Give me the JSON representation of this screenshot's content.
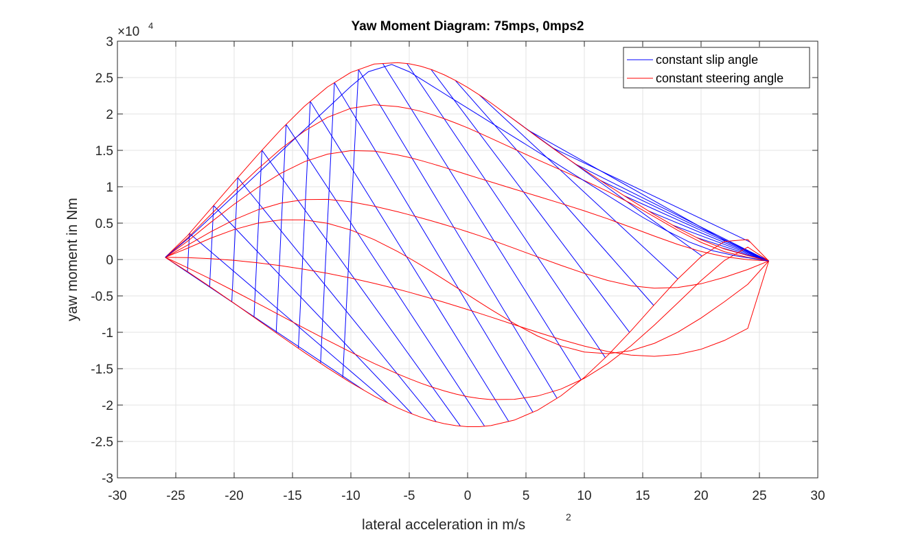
{
  "chart_data": {
    "type": "line",
    "title": "Yaw Moment Diagram: 75mps, 0mps2",
    "xlabel": "lateral acceleration in m/s",
    "xlabel_superscript": "2",
    "ylabel": "yaw moment in Nm",
    "y_exponent_prefix": "×10",
    "y_exponent": "4",
    "xlim": [
      -30,
      30
    ],
    "ylim": [
      -3,
      3
    ],
    "x_ticks": [
      -30,
      -25,
      -20,
      -15,
      -10,
      -5,
      0,
      5,
      10,
      15,
      20,
      25,
      30
    ],
    "y_ticks": [
      -3,
      -2.5,
      -2,
      -1.5,
      -1,
      -0.5,
      0,
      0.5,
      1,
      1.5,
      2,
      2.5,
      3
    ],
    "x_tick_labels": [
      "-30",
      "-25",
      "-20",
      "-15",
      "-10",
      "-5",
      "0",
      "5",
      "10",
      "15",
      "20",
      "25",
      "30"
    ],
    "y_tick_labels": [
      "-3",
      "-2.5",
      "-2",
      "-1.5",
      "-1",
      "-0.5",
      "0",
      "0.5",
      "1",
      "1.5",
      "2",
      "2.5",
      "3"
    ],
    "grid": true,
    "legend_position": "top-right",
    "legend": [
      {
        "label": "constant slip angle",
        "color": "#0000ff"
      },
      {
        "label": "constant steering angle",
        "color": "#ff0000"
      }
    ],
    "series": [
      {
        "name": "constant steering angle",
        "color": "#ff0000",
        "x": [
          -25.9,
          -24.0,
          -22.0,
          -20.0,
          -18.0,
          -16.0,
          -14.0,
          -12.0,
          -10.0,
          -8.0,
          -6.0,
          -5.0,
          -4.0,
          -3.0,
          -2.0,
          -1.0,
          0.0,
          1.0,
          2.0,
          4.0,
          6.0,
          8.0,
          10.0,
          12.0,
          14.0,
          16.0,
          18.0,
          20.0,
          22.0,
          24.0,
          25.8
        ],
        "y": [
          0.03,
          0.327,
          0.697,
          1.069,
          1.435,
          1.785,
          2.103,
          2.372,
          2.572,
          2.686,
          2.706,
          2.69,
          2.656,
          2.605,
          2.538,
          2.457,
          2.365,
          2.262,
          2.152,
          1.918,
          1.679,
          1.448,
          1.23,
          1.021,
          0.817,
          0.617,
          0.432,
          0.272,
          0.145,
          0.055,
          -0.02
        ]
      },
      {
        "name": "constant steering angle",
        "color": "#ff0000",
        "x": [
          -25.9,
          -24.0,
          -22.0,
          -20.0,
          -18.0,
          -16.0,
          -14.0,
          -12.0,
          -10.0,
          -8.0,
          -6.0,
          -5.0,
          -4.0,
          -3.0,
          -2.0,
          -1.0,
          0.0,
          1.0,
          2.0,
          4.0,
          6.0,
          8.0,
          10.0,
          12.0,
          14.0,
          16.0,
          18.0,
          20.0,
          22.0,
          24.0,
          25.8
        ],
        "y": [
          0.03,
          0.294,
          0.617,
          0.935,
          1.24,
          1.52,
          1.763,
          1.954,
          2.078,
          2.126,
          2.101,
          2.074,
          2.036,
          1.989,
          1.935,
          1.874,
          1.809,
          1.739,
          1.666,
          1.518,
          1.371,
          1.229,
          1.086,
          0.936,
          0.769,
          0.587,
          0.402,
          0.236,
          0.108,
          0.029,
          -0.02
        ]
      },
      {
        "name": "constant steering angle",
        "color": "#ff0000",
        "x": [
          -25.9,
          -24.0,
          -22.0,
          -20.0,
          -18.0,
          -16.0,
          -14.0,
          -12.0,
          -10.0,
          -8.0,
          -6.0,
          -5.0,
          -4.0,
          -3.0,
          -2.0,
          -1.0,
          0.0,
          1.0,
          2.0,
          4.0,
          6.0,
          8.0,
          10.0,
          12.0,
          14.0,
          16.0,
          18.0,
          20.0,
          22.0,
          24.0,
          25.8
        ],
        "y": [
          0.03,
          0.25,
          0.511,
          0.759,
          0.987,
          1.185,
          1.342,
          1.448,
          1.496,
          1.49,
          1.438,
          1.402,
          1.36,
          1.314,
          1.266,
          1.216,
          1.165,
          1.115,
          1.066,
          0.967,
          0.869,
          0.771,
          0.669,
          0.559,
          0.442,
          0.322,
          0.208,
          0.11,
          0.039,
          -0.002,
          -0.02
        ]
      },
      {
        "name": "constant steering angle",
        "color": "#ff0000",
        "x": [
          -25.9,
          -24.0,
          -22.0,
          -20.0,
          -18.0,
          -16.0,
          -14.0,
          -12.0,
          -10.0,
          -8.0,
          -6.0,
          -5.0,
          -4.0,
          -3.0,
          -2.0,
          -1.0,
          0.0,
          1.0,
          2.0,
          4.0,
          6.0,
          8.0,
          10.0,
          12.0,
          14.0,
          16.0,
          18.0,
          20.0,
          22.0,
          24.0,
          25.8
        ],
        "y": [
          0.03,
          0.196,
          0.381,
          0.546,
          0.681,
          0.775,
          0.823,
          0.826,
          0.792,
          0.732,
          0.657,
          0.615,
          0.572,
          0.527,
          0.48,
          0.432,
          0.381,
          0.328,
          0.271,
          0.154,
          0.036,
          -0.08,
          -0.191,
          -0.288,
          -0.36,
          -0.393,
          -0.384,
          -0.333,
          -0.245,
          -0.137,
          -0.02
        ]
      },
      {
        "name": "constant steering angle",
        "color": "#ff0000",
        "x": [
          -25.9,
          -24.0,
          -22.0,
          -20.0,
          -18.0,
          -16.0,
          -14.0,
          -12.0,
          -10.0,
          -8.0,
          -6.0,
          -5.0,
          -4.0,
          -3.0,
          -2.0,
          -1.0,
          0.0,
          1.0,
          2.0,
          4.0,
          6.0,
          8.0,
          10.0,
          12.0,
          14.0,
          16.0,
          18.0,
          20.0,
          22.0,
          24.0,
          25.8
        ],
        "y": [
          0.03,
          0.155,
          0.293,
          0.412,
          0.499,
          0.545,
          0.545,
          0.497,
          0.405,
          0.273,
          0.11,
          0.019,
          -0.076,
          -0.175,
          -0.276,
          -0.379,
          -0.483,
          -0.586,
          -0.687,
          -0.88,
          -1.052,
          -1.187,
          -1.271,
          -1.293,
          -1.252,
          -1.152,
          -0.999,
          -0.804,
          -0.58,
          -0.341,
          -0.02
        ]
      },
      {
        "name": "constant steering angle",
        "color": "#ff0000",
        "x": [
          -25.9,
          -24.0,
          -22.0,
          -20.0,
          -18.0,
          -16.0,
          -14.0,
          -12.0,
          -10.0,
          -8.0,
          -6.0,
          -5.0,
          -4.0,
          -3.0,
          -2.0,
          -1.0,
          0.0,
          1.0,
          2.0,
          4.0,
          6.0,
          8.0,
          10.0,
          12.0,
          14.0,
          16.0,
          18.0,
          20.0,
          22.0,
          24.0,
          25.8
        ],
        "y": [
          0.03,
          0.026,
          0.011,
          -0.012,
          -0.044,
          -0.085,
          -0.134,
          -0.19,
          -0.255,
          -0.327,
          -0.407,
          -0.45,
          -0.495,
          -0.541,
          -0.589,
          -0.638,
          -0.688,
          -0.739,
          -0.791,
          -0.896,
          -1.0,
          -1.1,
          -1.19,
          -1.264,
          -1.314,
          -1.33,
          -1.305,
          -1.233,
          -1.112,
          -0.946,
          -0.02
        ]
      },
      {
        "name": "constant steering angle",
        "color": "#ff0000",
        "x": [
          -25.9,
          -24.0,
          -22.0,
          -20.0,
          -18.0,
          -16.0,
          -14.0,
          -12.0,
          -10.0,
          -8.0,
          -6.0,
          -5.0,
          -4.0,
          -3.0,
          -2.0,
          -1.0,
          0.0,
          1.0,
          2.0,
          4.0,
          6.0,
          8.0,
          10.0,
          12.0,
          14.0,
          16.0,
          18.0,
          20.0,
          22.0,
          24.0,
          25.8
        ],
        "y": [
          0.03,
          -0.112,
          -0.27,
          -0.434,
          -0.602,
          -0.772,
          -0.942,
          -1.11,
          -1.273,
          -1.428,
          -1.572,
          -1.638,
          -1.7,
          -1.756,
          -1.806,
          -1.849,
          -1.884,
          -1.909,
          -1.925,
          -1.921,
          -1.875,
          -1.78,
          -1.632,
          -1.432,
          -1.185,
          -0.901,
          -0.596,
          -0.289,
          -0.013,
          0.17,
          -0.02
        ]
      },
      {
        "name": "constant steering angle",
        "color": "#ff0000",
        "x": [
          -25.9,
          -24.0,
          -22.0,
          -20.0,
          -18.0,
          -16.0,
          -14.0,
          -12.0,
          -10.0,
          -8.0,
          -6.0,
          -5.0,
          -4.0,
          -3.0,
          -2.0,
          -1.0,
          0.0,
          1.0,
          2.0,
          4.0,
          6.0,
          8.0,
          10.0,
          12.0,
          14.0,
          16.0,
          18.0,
          20.0,
          22.0,
          24.0,
          25.8
        ],
        "y": [
          0.03,
          -0.166,
          -0.381,
          -0.602,
          -0.827,
          -1.053,
          -1.275,
          -1.49,
          -1.693,
          -1.878,
          -2.039,
          -2.107,
          -2.167,
          -2.217,
          -2.256,
          -2.283,
          -2.297,
          -2.297,
          -2.282,
          -2.207,
          -2.07,
          -1.873,
          -1.62,
          -1.318,
          -0.979,
          -0.62,
          -0.269,
          0.039,
          0.248,
          0.275,
          -0.02
        ]
      },
      {
        "name": "constant slip angle",
        "color": "#0000ff",
        "x": [
          -25.9,
          -24.0,
          -22.0,
          -20.0,
          -18.0,
          -16.0,
          -14.0,
          -12.0,
          -10.0,
          -8.5,
          -6.5,
          -5.0,
          -3.0,
          -1.0,
          1.0,
          3.0,
          5.0,
          7.0,
          9.0,
          11.0,
          13.0,
          15.0,
          17.0,
          19.0,
          21.0,
          23.0,
          25.8
        ],
        "y": [
          0.03,
          0.28,
          0.58,
          0.88,
          1.18,
          1.48,
          1.78,
          2.08,
          2.38,
          2.58,
          2.68,
          2.58,
          2.38,
          2.18,
          1.98,
          1.78,
          1.58,
          1.38,
          1.18,
          0.98,
          0.78,
          0.58,
          0.4,
          0.24,
          0.12,
          0.05,
          -0.02
        ]
      }
    ]
  }
}
